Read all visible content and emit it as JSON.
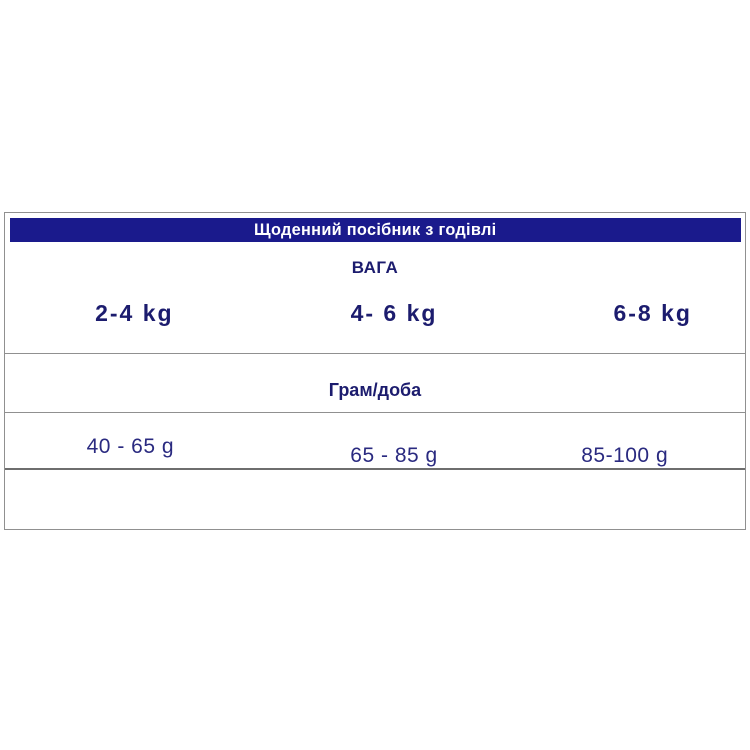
{
  "chart_data": {
    "type": "table",
    "title": "Щоденний посібник з годівлі",
    "weight_header": "ВАГА",
    "weight_columns": [
      "2-4 kg",
      "4- 6 kg",
      "6-8 kg"
    ],
    "row_label": "Грам/доба",
    "row_values": [
      "40 - 65 g",
      "65 - 85 g",
      "85-100 g"
    ],
    "layout_hint": "single header bar, weight columns row, unit-label row, values row, empty bottom row"
  },
  "colors": {
    "header_bar_bg": "#1a1a8c",
    "heading_text": "#1c1c6e",
    "value_text": "#2a2a80",
    "border": "#909090",
    "background": "#ffffff"
  }
}
